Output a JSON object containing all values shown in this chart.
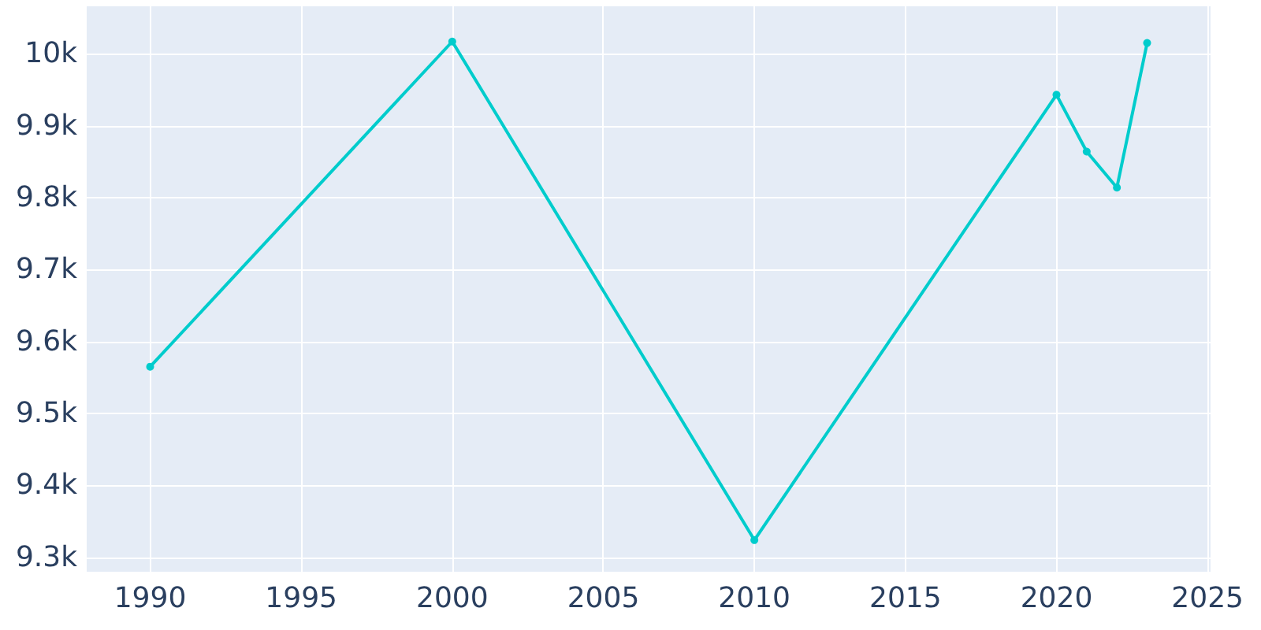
{
  "chart_data": {
    "type": "line",
    "x": [
      1990,
      2000,
      2010,
      2020,
      2021,
      2022,
      2023
    ],
    "series": [
      {
        "color": "#00cccc",
        "values": [
          9565,
          10017,
          9324,
          9943,
          9864,
          9814,
          10015
        ]
      }
    ],
    "xlim": [
      1987.9,
      2025.1
    ],
    "xticks": [
      1990,
      1995,
      2000,
      2005,
      2010,
      2015,
      2020,
      2025
    ],
    "ylim": [
      9280,
      10066
    ],
    "yticks": [
      {
        "value": 9300,
        "label": "9.3k"
      },
      {
        "value": 9400,
        "label": "9.4k"
      },
      {
        "value": 9500,
        "label": "9.5k"
      },
      {
        "value": 9600,
        "label": "9.6k"
      },
      {
        "value": 9700,
        "label": "9.7k"
      },
      {
        "value": 9800,
        "label": "9.8k"
      },
      {
        "value": 9900,
        "label": "9.9k"
      },
      {
        "value": 10000,
        "label": "10k"
      }
    ],
    "grid": true,
    "marker": "circle",
    "line_style": "solid"
  }
}
